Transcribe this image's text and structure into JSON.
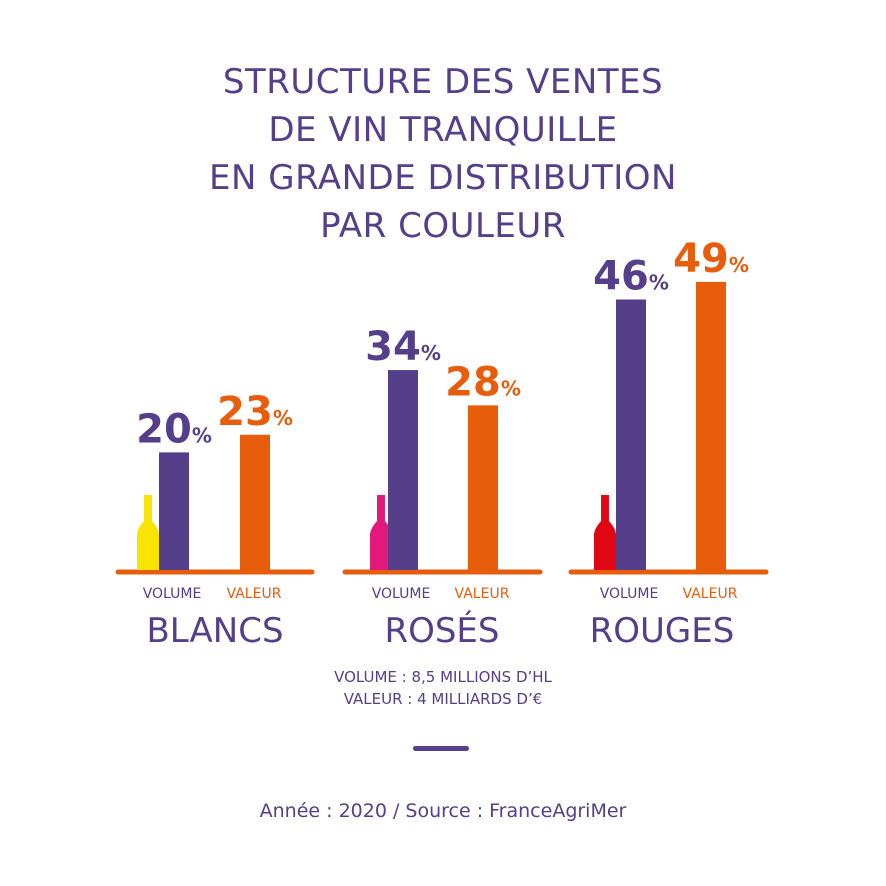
{
  "title_lines": [
    "STRUCTURE DES VENTES",
    "DE VIN TRANQUILLE",
    "EN GRANDE DISTRIBUTION",
    "PAR COULEUR"
  ],
  "colors": {
    "volume": "#553e8a",
    "valeur": "#e85d0c",
    "text": "#553e8a",
    "blancs_bottle": "#f8e400",
    "roses_bottle": "#e2187a",
    "rouges_bottle": "#e10613"
  },
  "chart_data": {
    "type": "bar",
    "categories": [
      "BLANCS",
      "ROSÉS",
      "ROUGES"
    ],
    "series": [
      {
        "name": "VOLUME",
        "values": [
          20,
          34,
          46
        ]
      },
      {
        "name": "VALEUR",
        "values": [
          23,
          28,
          49
        ]
      }
    ],
    "unit": "%",
    "bottle_icons": [
      "yellow-bottle-icon",
      "pink-bottle-icon",
      "red-bottle-icon"
    ]
  },
  "totals": {
    "volume": "VOLUME : 8,5 MILLIONS D’HL",
    "valeur": "VALEUR : 4 MILLIARDS D’€"
  },
  "source": "Année : 2020 / Source : FranceAgriMer"
}
